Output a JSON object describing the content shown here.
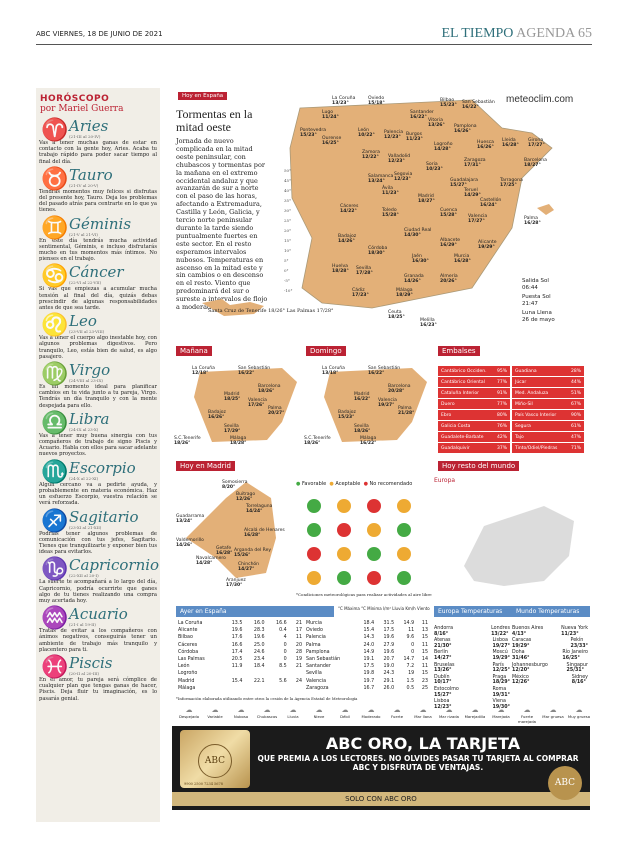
{
  "header": {
    "left": "ABC  VIERNES, 18 DE JUNIO DE 2021",
    "section": "EL TIEMPO",
    "sub": "AGENDA",
    "page": "65"
  },
  "horoscope": {
    "title": "HORÓSCOPO",
    "author": "por Mariel Guerra",
    "signs": [
      {
        "name": "Aries",
        "dates": "(21-III al 20-IV)",
        "text": "Vas a tener muchas ganas de estar en contacto con la gente hoy, Aries. Acaba tu trabajo rápido para poder sacar tiempo al final del día."
      },
      {
        "name": "Tauro",
        "dates": "(21-IV al 20-V)",
        "text": "Tendrás momentos muy felices si disfrutas del presente hoy, Tauro. Deja los problemas del pasado atrás para centrarte en lo que ya tienes."
      },
      {
        "name": "Géminis",
        "dates": "(21-V al 21-VI)",
        "text": "En este día tendrás mucha actividad sentimental, Géminis, e incluso disfrutarás mucho en tus momentos más íntimos. No pienses en el trabajo."
      },
      {
        "name": "Cáncer",
        "dates": "(22-VI al 22-VII)",
        "text": "Si vas que empiezas a acumular mucha tensión al final del día, quizás debas prescindir de algunas responsabilidades antes de que sea tarde."
      },
      {
        "name": "Leo",
        "dates": "(23-VII al 23-VIII)",
        "text": "Vas a tener el cuerpo algo inestable hoy, con algunos problemas digestivos. Pero tranquilo, Leo, estás bien de salud, es algo pasajero."
      },
      {
        "name": "Virgo",
        "dates": "(24-VIII al 23-IX)",
        "text": "Es un momento ideal para planificar cambios en tu vida junto a tu pareja, Virgo. Tendrás un día tranquilo y con la mente despejada para ello."
      },
      {
        "name": "Libra",
        "dates": "(24-IX al 23-X)",
        "text": "Vas a tener muy buena sinergia con tus compañeros de trabajo de signo Piscis y Acuario. Habla con ellos para sacar adelante nuevos proyectos."
      },
      {
        "name": "Escorpio",
        "dates": "(24-X al 22-XI)",
        "text": "Algún cercano va a pedirte ayuda, y probablemente en materia económica. Haz un esfuerzo Escorpio, vuestra relación se verá reforzada."
      },
      {
        "name": "Sagitario",
        "dates": "(23-XI al 21-XII)",
        "text": "Podrías tener algunos problemas de comunicación con tus jefes, Sagitario. Tienes que tranquilizarte y exponer bien tus ideas para evitarlos."
      },
      {
        "name": "Capricornio",
        "dates": "(22-XII al 20-I)",
        "text": "La suerte te acompañará a lo largo del día, Capricornio, podría ocurrirte que ganes algo de tu tienes realizando una compra muy acertada hoy."
      },
      {
        "name": "Acuario",
        "dates": "(21-I al 19-II)",
        "text": "Tratas de evitar a los compañeros con ánimos negativos, conseguirás tener un ambiente de trabajo más tranquilo y placentero para ti."
      },
      {
        "name": "Piscis",
        "dates": "(20-II al 20-III)",
        "text": "En el amor, tu pareja será cómplice de cualquier plan que tengas ganas de hacer, Piscis. Deja fluir tu imaginación, es lo pasarás genial."
      }
    ]
  },
  "main_map": {
    "tag": "Hoy en España",
    "headline": "Tormentas en la mitad oeste",
    "body": "Jornada de nuevo complicada en la mitad oeste peninsular, con chubascos y tormentas por la mañana en el extremo occidental andaluz y que avanzarán de sur a norte con el paso de las horas, afectando a Extremadura, Castilla y León, Galicia, y tercio norte peninsular durante la tarde siendo puntualmente fuertes en este sector. En el resto esperamos intervalos nubosos. Temperaturas en ascenso en la mitad este y sin cambios o en descenso en el resto. Viento que predominará del sur o sureste a intervalos de flojo a moderado",
    "brand": "meteoclim.com",
    "canarias": "Santa Cruz de Tenerife 18/26°  Las Palmas 17/28°",
    "sun": {
      "rise_label": "Salida Sol",
      "rise": "06:44",
      "set_label": "Puesta Sol",
      "set": "21:47",
      "moon_label": "Luna Llena",
      "moon": "26 de mayo"
    },
    "cities": [
      {
        "n": "La Coruña",
        "t": "13/23°"
      },
      {
        "n": "Lugo",
        "t": "11/24°"
      },
      {
        "n": "Oviedo",
        "t": "15/18°"
      },
      {
        "n": "Santander",
        "t": "16/22°"
      },
      {
        "n": "Bilbao",
        "t": "15/23°"
      },
      {
        "n": "San Sebastián",
        "t": "16/22°"
      },
      {
        "n": "Pontevedra",
        "t": "15/23°"
      },
      {
        "n": "Ourense",
        "t": "16/25°"
      },
      {
        "n": "León",
        "t": "10/22°"
      },
      {
        "n": "Palencia",
        "t": "12/23°"
      },
      {
        "n": "Burgos",
        "t": "11/23°"
      },
      {
        "n": "Vitoria",
        "t": "13/26°"
      },
      {
        "n": "Pamplona",
        "t": "16/26°"
      },
      {
        "n": "Huesca",
        "t": "16/26°"
      },
      {
        "n": "Lleida",
        "t": "16/28°"
      },
      {
        "n": "Girona",
        "t": "17/27°"
      },
      {
        "n": "Zamora",
        "t": "12/22°"
      },
      {
        "n": "Valladolid",
        "t": "12/23°"
      },
      {
        "n": "Logroño",
        "t": "14/28°"
      },
      {
        "n": "Soria",
        "t": "10/23°"
      },
      {
        "n": "Zaragoza",
        "t": "17/31°"
      },
      {
        "n": "Barcelona",
        "t": "18/27°"
      },
      {
        "n": "Segovia",
        "t": "12/23°"
      },
      {
        "n": "Salamanca",
        "t": "13/24°"
      },
      {
        "n": "Ávila",
        "t": "11/23°"
      },
      {
        "n": "Guadalajara",
        "t": "15/27°"
      },
      {
        "n": "Teruel",
        "t": "14/29°"
      },
      {
        "n": "Tarragona",
        "t": "17/25°"
      },
      {
        "n": "Madrid",
        "t": "18/27°"
      },
      {
        "n": "Castellón",
        "t": "16/24°"
      },
      {
        "n": "Cáceres",
        "t": "14/22°"
      },
      {
        "n": "Toledo",
        "t": "15/28°"
      },
      {
        "n": "Cuenca",
        "t": "15/28°"
      },
      {
        "n": "Valencia",
        "t": "17/27°"
      },
      {
        "n": "Palma",
        "t": "16/28°"
      },
      {
        "n": "Badajoz",
        "t": "14/26°"
      },
      {
        "n": "Ciudad Real",
        "t": "14/30°"
      },
      {
        "n": "Albacete",
        "t": "16/29°"
      },
      {
        "n": "Alicante",
        "t": "19/29°"
      },
      {
        "n": "Córdoba",
        "t": "18/30°"
      },
      {
        "n": "Jaén",
        "t": "16/30°"
      },
      {
        "n": "Murcia",
        "t": "16/28°"
      },
      {
        "n": "Huelva",
        "t": "18/28°"
      },
      {
        "n": "Sevilla",
        "t": "17/28°"
      },
      {
        "n": "Granada",
        "t": "14/26°"
      },
      {
        "n": "Almería",
        "t": "20/26°"
      },
      {
        "n": "Cádiz",
        "t": "17/23°"
      },
      {
        "n": "Málaga",
        "t": "18/29°"
      },
      {
        "n": "Ceuta",
        "t": "18/25°"
      },
      {
        "n": "Melilla",
        "t": "16/23°"
      }
    ],
    "lat": [
      "50°",
      "45°",
      "40°",
      "35°",
      "30°",
      "25°",
      "20°",
      "15°",
      "10°",
      "5°",
      "0°",
      "-5°",
      "-10°"
    ]
  },
  "manana": {
    "title": "Mañana",
    "cities": [
      [
        "La Coruña",
        "12/18°"
      ],
      [
        "San Sebastián",
        "16/22°"
      ],
      [
        "Barcelona",
        "18/26°"
      ],
      [
        "Madrid",
        "18/25°"
      ],
      [
        "Valencia",
        "17/26°"
      ],
      [
        "Palma",
        "20/27°"
      ],
      [
        "Badajoz",
        "16/26°"
      ],
      [
        "Sevilla",
        "17/29°"
      ],
      [
        "Málaga",
        "18/28°"
      ],
      [
        "S.C.Tenerife",
        "18/26°"
      ]
    ]
  },
  "domingo": {
    "title": "Domingo",
    "cities": [
      [
        "La Coruña",
        "13/18°"
      ],
      [
        "San Sebastián",
        "16/22°"
      ],
      [
        "Barcelona",
        "20/28°"
      ],
      [
        "Madrid",
        "16/22°"
      ],
      [
        "Valencia",
        "19/27°"
      ],
      [
        "Palma",
        "21/28°"
      ],
      [
        "Badajoz",
        "15/23°"
      ],
      [
        "Sevilla",
        "18/26°"
      ],
      [
        "Málaga",
        "16/22°"
      ],
      [
        "S.C.Tenerife",
        "18/26°"
      ]
    ]
  },
  "embalses": {
    "title": "Embalses",
    "left": [
      [
        "Cantábrico Occiden.",
        "95%"
      ],
      [
        "Cantábrico Oriental",
        "77%"
      ],
      [
        "Cataluña Interior",
        "91%"
      ],
      [
        "Duero",
        "77%"
      ],
      [
        "Ebro",
        "80%"
      ],
      [
        "Galicia Costa",
        "76%"
      ],
      [
        "Guadalete-Barbate",
        "42%"
      ],
      [
        "Guadalquivir",
        "37%"
      ]
    ],
    "right": [
      [
        "Guadiana",
        "28%"
      ],
      [
        "Júcar",
        "44%"
      ],
      [
        "Med. Andaluza",
        "51%"
      ],
      [
        "Miño-Sil",
        "67%"
      ],
      [
        "País Vasco Interior",
        "90%"
      ],
      [
        "Segura",
        "61%"
      ],
      [
        "Tajo",
        "47%"
      ],
      [
        "Tinto/Odiel/Piedras",
        "71%"
      ]
    ]
  },
  "madrid": {
    "tag": "Hoy en Madrid",
    "legend": [
      "Favorable",
      "Aceptable",
      "No recomendado"
    ],
    "cities": [
      [
        "Somosierra",
        "8/20°"
      ],
      [
        "Buitrago",
        "12/26°"
      ],
      [
        "Torrelaguna",
        "14/24°"
      ],
      [
        "Guadarrama",
        "13/24°"
      ],
      [
        "Alcalá de Henares",
        "16/28°"
      ],
      [
        "Valdemorillo",
        "14/26°"
      ],
      [
        "Getafe",
        "16/28°"
      ],
      [
        "Arganda del Rey",
        "15/26°"
      ],
      [
        "Navalcarnero",
        "14/28°"
      ],
      [
        "Chinchón",
        "14/27°"
      ],
      [
        "Aranjuez",
        "17/30°"
      ]
    ],
    "note": "*Condiciones meteorológicas para realizar actividades al aire libre"
  },
  "mundo": {
    "tag": "Hoy resto del mundo",
    "region": "Europa"
  },
  "ayer": {
    "title": "Ayer en España",
    "headers": [
      "°C Máxima",
      "°C Mínima",
      "l/m² Lluvia",
      "Km/h Viento"
    ],
    "left": [
      [
        "La Coruña",
        "13.5",
        "16.0",
        "16.6",
        "21"
      ],
      [
        "Alicante",
        "19.6",
        "28.3",
        "0.4",
        "17"
      ],
      [
        "Bilbao",
        "17.6",
        "19.6",
        "4",
        "11"
      ],
      [
        "Cáceres",
        "16.6",
        "25.0",
        "0",
        "20"
      ],
      [
        "Córdoba",
        "17.4",
        "24.6",
        "0",
        "28"
      ],
      [
        "Las Palmas",
        "20.5",
        "23.4",
        "0",
        "19"
      ],
      [
        "León",
        "11.9",
        "18.4",
        "8.5",
        "21"
      ],
      [
        "Logroño",
        "",
        "",
        "",
        ""
      ],
      [
        "Madrid",
        "15.4",
        "22.1",
        "5.6",
        "24"
      ],
      [
        "Málaga",
        "",
        "",
        "",
        ""
      ]
    ],
    "right": [
      [
        "Murcia",
        "18.4",
        "31.5",
        "14.9",
        "11"
      ],
      [
        "Oviedo",
        "15.4",
        "17.5",
        "11",
        "13"
      ],
      [
        "Palencia",
        "14.3",
        "19.6",
        "9.6",
        "15"
      ],
      [
        "Palma",
        "24.0",
        "27.9",
        "0",
        "11"
      ],
      [
        "Pamplona",
        "14.9",
        "19.6",
        "0",
        "15"
      ],
      [
        "San Sebastián",
        "19.1",
        "20.7",
        "14.7",
        "14"
      ],
      [
        "Santander",
        "17.5",
        "19.0",
        "7.2",
        "11"
      ],
      [
        "Sevilla",
        "19.8",
        "24.3",
        "19",
        "15"
      ],
      [
        "Valencia",
        "19.7",
        "29.1",
        "1.5",
        "23"
      ],
      [
        "Zaragoza",
        "16.7",
        "26.0",
        "0.5",
        "25"
      ]
    ],
    "footnote": "*Información elaborada utilizando entre otros la cesión de la Agencia Estatal de Meteorología"
  },
  "europa": {
    "title": "Europa Temperaturas",
    "rows": [
      [
        "Andorra",
        "8/16°",
        "Londres",
        "13/22°"
      ],
      [
        "Atenas",
        "21/30°",
        "Lisboa",
        "19/27°"
      ],
      [
        "Berlín",
        "14/27°",
        "Moscú",
        "19/29°"
      ],
      [
        "Bruselas",
        "13/26°",
        "París",
        "12/25°"
      ],
      [
        "Dublín",
        "10/17°",
        "Praga",
        "18/29°"
      ],
      [
        "Estocolmo",
        "15/27°",
        "Roma",
        "19/31°"
      ],
      [
        "Lisboa",
        "12/23°",
        "Viena",
        "19/30°"
      ]
    ]
  },
  "mundo_t": {
    "title": "Mundo Temperaturas",
    "rows": [
      [
        "Buenos Aires",
        "4/13°",
        "Nueva York",
        "11/23°"
      ],
      [
        "Caracas",
        "19/29°",
        "Pekín",
        "23/33°"
      ],
      [
        "Doha",
        "31/46°",
        "Río Janeiro",
        "16/25°"
      ],
      [
        "Johannesburgo",
        "12/20°",
        "Singapur",
        "25/31°"
      ],
      [
        "México",
        "12/26°",
        "Sidney",
        "8/16°"
      ]
    ]
  },
  "legend_icons": [
    "Despejado",
    "Variable",
    "Nuboso",
    "Chubascos",
    "Lluvia",
    "Nieve",
    "Débil",
    "Moderado",
    "Fuerte",
    "Mar llana",
    "Mar rizada",
    "Marejadilla",
    "Marejada",
    "Fuerte marejada",
    "Mar gruesa",
    "Muy gruesa"
  ],
  "ad": {
    "headline": "ABC ORO, LA TARJETA",
    "text": "QUE PREMIA A LOS LECTORES. NO OLVIDES PASAR TU TARJETA AL COMPRAR ABC Y DISFRUTA DE VENTAJAS.",
    "bottom": "SOLO CON ABC ORO",
    "card": "ABC",
    "card_number": "9900 2500 7234 5678"
  },
  "colors": {
    "accent": "#b23",
    "teal": "#2e6f7a",
    "blue": "#5b8cc5",
    "embalse_red": "#d33",
    "ad_gold": "#d2b77c"
  }
}
